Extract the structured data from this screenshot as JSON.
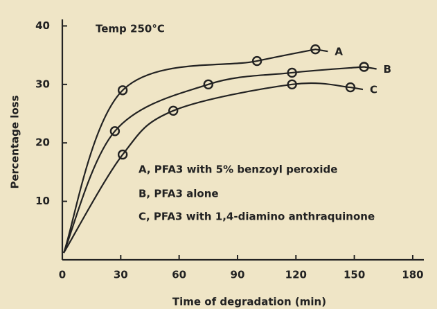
{
  "chart_data": {
    "type": "line",
    "y_label": "Percentage loss",
    "x_label": "Time of degradation (min)",
    "annotations": [
      "Temp 250°C",
      "A, PFA3 with 5% benzoyl  peroxide",
      "B, PFA3 alone",
      "C, PFA3 with 1,4-diamino anthraquinone"
    ],
    "series": [
      {
        "name": "A",
        "color": "#222222",
        "x": [
          31,
          100,
          130
        ],
        "values": [
          29,
          34,
          36
        ]
      },
      {
        "name": "B",
        "color": "#222222",
        "x": [
          27,
          75,
          118,
          155
        ],
        "values": [
          22,
          30,
          32,
          33
        ]
      },
      {
        "name": "C",
        "color": "#222222",
        "x": [
          31,
          57,
          118,
          148
        ],
        "values": [
          18,
          25.5,
          30,
          29.5
        ]
      }
    ],
    "xlim": [
      0,
      185
    ],
    "ylim": [
      0,
      41
    ],
    "xticks": [
      0,
      30,
      60,
      90,
      120,
      150,
      180
    ],
    "yticks": [
      10,
      20,
      30,
      40
    ],
    "grid": false
  }
}
